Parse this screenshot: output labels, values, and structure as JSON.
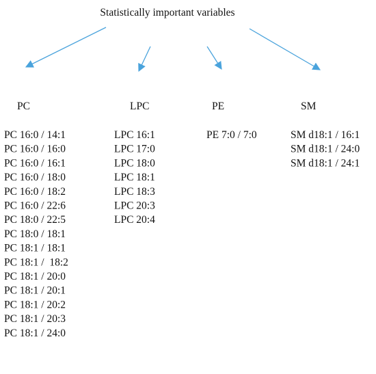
{
  "title": "Statistically important variables",
  "groups": [
    {
      "label": "PC",
      "items": [
        "PC 16:0 / 14:1",
        "PC 16:0 / 16:0",
        "PC 16:0 / 16:1",
        "PC 16:0 / 18:0",
        "PC 16:0 / 18:2",
        "PC 16:0 / 22:6",
        "PC 18:0 / 22:5",
        "PC 18:0 / 18:1",
        "PC 18:1 / 18:1",
        "PC 18:1 /  18:2",
        "PC 18:1 / 20:0",
        "PC 18:1 / 20:1",
        "PC 18:1 / 20:2",
        "PC 18:1 / 20:3",
        "PC 18:1 / 24:0"
      ]
    },
    {
      "label": "LPC",
      "items": [
        "LPC 16:1",
        "LPC 17:0",
        "LPC 18:0",
        "LPC 18:1",
        "LPC 18:3",
        "LPC 20:3",
        "LPC 20:4"
      ]
    },
    {
      "label": "PE",
      "items": [
        "PE 7:0 / 7:0"
      ]
    },
    {
      "label": "SM",
      "items": [
        "SM d18:1 / 16:1",
        "SM d18:1 / 24:0",
        "SM d18:1 / 24:1"
      ]
    }
  ]
}
